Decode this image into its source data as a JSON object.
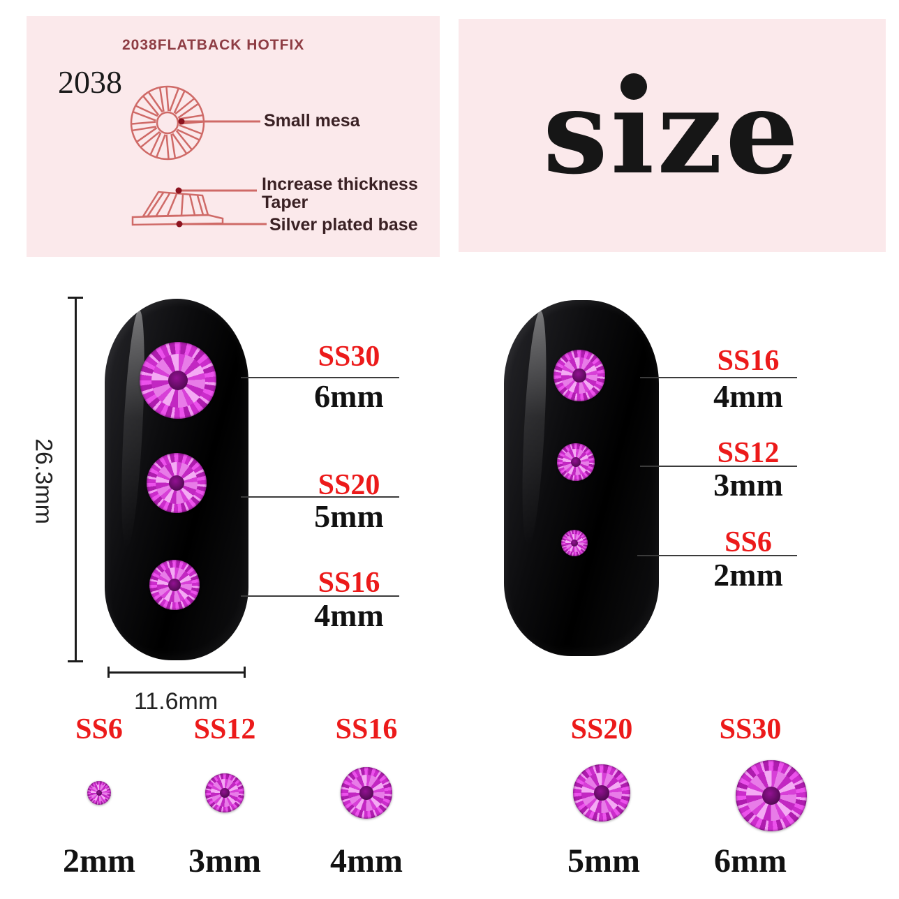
{
  "spec_panel": {
    "header": "2038FLATBACK HOTFIX",
    "model_number": "2038",
    "top_view_label": "Small mesa",
    "side_view_labels": [
      "Increase thickness",
      "Taper",
      "Silver plated base"
    ]
  },
  "size_panel": {
    "word_start": "s",
    "word_i": "ı",
    "word_end": "ze"
  },
  "measurements": {
    "nail_height": "26.3mm",
    "nail_width": "11.6mm"
  },
  "left_nail_callouts": [
    {
      "ss": "SS30",
      "mm": "6mm"
    },
    {
      "ss": "SS20",
      "mm": "5mm"
    },
    {
      "ss": "SS16",
      "mm": "4mm"
    }
  ],
  "right_nail_callouts": [
    {
      "ss": "SS16",
      "mm": "4mm"
    },
    {
      "ss": "SS12",
      "mm": "3mm"
    },
    {
      "ss": "SS6",
      "mm": "2mm"
    }
  ],
  "size_chart": {
    "items": [
      {
        "ss": "SS6",
        "mm": "2mm",
        "diameter_mm": 2
      },
      {
        "ss": "SS12",
        "mm": "3mm",
        "diameter_mm": 3
      },
      {
        "ss": "SS16",
        "mm": "4mm",
        "diameter_mm": 4
      },
      {
        "ss": "SS20",
        "mm": "5mm",
        "diameter_mm": 5
      },
      {
        "ss": "SS30",
        "mm": "6mm",
        "diameter_mm": 6
      }
    ]
  },
  "colors": {
    "panel_pink": "#fbe9eb",
    "header_maroon": "#8e3d44",
    "diagram_stroke": "#cf6a67",
    "accent_red": "#ec1a1a",
    "gem_magenta": "#cb2ccb",
    "callout_line": "#3b3b3b"
  }
}
